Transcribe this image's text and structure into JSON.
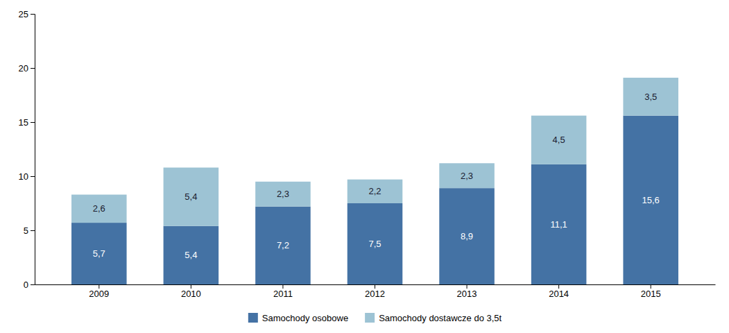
{
  "chart_data": {
    "type": "bar",
    "stacked": true,
    "data_labels": true,
    "grid": false,
    "legend": "bottom",
    "categories": [
      "2009",
      "2010",
      "2011",
      "2012",
      "2013",
      "2014",
      "2015"
    ],
    "series": [
      {
        "name": "Samochody osobowe",
        "color": "#4472A4",
        "values": [
          5.7,
          5.4,
          7.2,
          7.5,
          8.9,
          11.1,
          15.6
        ],
        "value_labels": [
          "5,7",
          "5,4",
          "7,2",
          "7,5",
          "8,9",
          "11,1",
          "15,6"
        ]
      },
      {
        "name": "Samochody dostawcze do 3,5t",
        "color": "#9DC3D4",
        "values": [
          2.6,
          5.4,
          2.3,
          2.2,
          2.3,
          4.5,
          3.5
        ],
        "value_labels": [
          "2,6",
          "5,4",
          "2,3",
          "2,2",
          "2,3",
          "4,5",
          "3,5"
        ]
      }
    ],
    "ylim": [
      0,
      25
    ],
    "yticks": [
      0,
      5,
      10,
      15,
      20,
      25
    ]
  }
}
